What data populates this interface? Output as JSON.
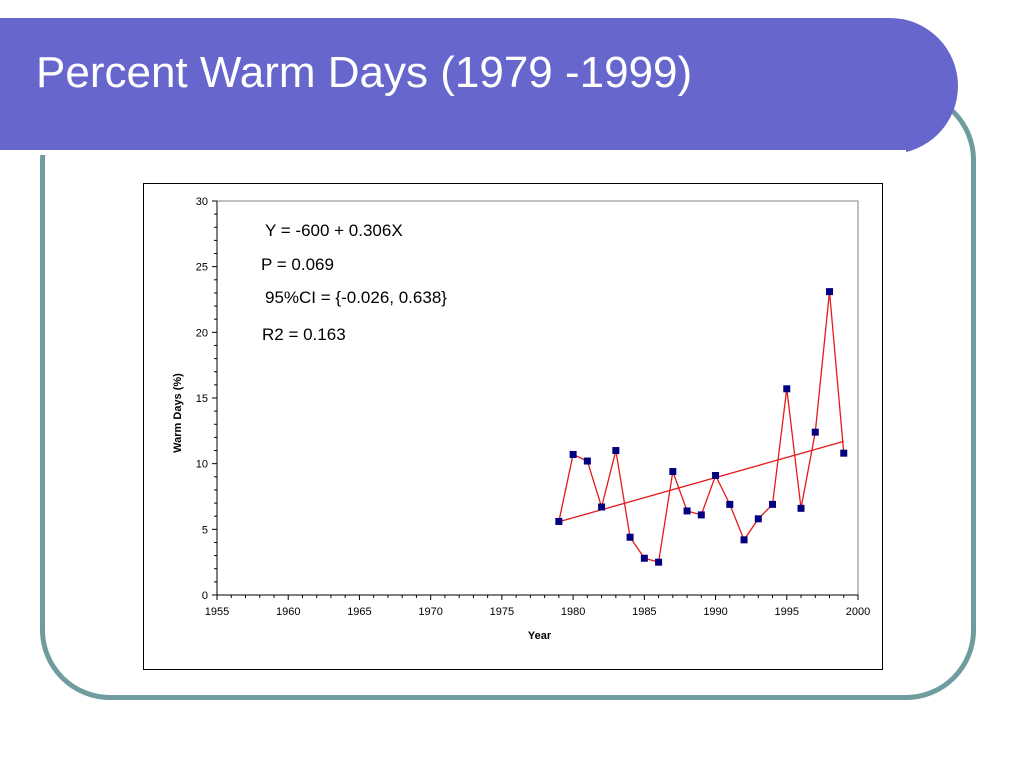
{
  "slide": {
    "title": "Percent Warm Days (1979 -1999)"
  },
  "colors": {
    "banner": "#6666cc",
    "frame": "#6f9c9e",
    "series": "#e31a1c",
    "marker": "#000080"
  },
  "chart_data": {
    "type": "scatter",
    "xlabel": "Year",
    "ylabel": "Warm Days (%)",
    "xlim": [
      1955,
      2000
    ],
    "ylim": [
      0,
      30
    ],
    "x_ticks": [
      1955,
      1960,
      1965,
      1970,
      1975,
      1980,
      1985,
      1990,
      1995,
      2000
    ],
    "y_ticks": [
      0,
      5,
      10,
      15,
      20,
      25,
      30
    ],
    "grid": false,
    "legend": "none",
    "series": [
      {
        "x": [
          1979,
          1980,
          1981,
          1982,
          1983,
          1984,
          1985,
          1986,
          1987,
          1988,
          1989,
          1990,
          1991,
          1992,
          1993,
          1994,
          1995,
          1996,
          1997,
          1998,
          1999
        ],
        "y": [
          5.6,
          10.7,
          10.2,
          6.7,
          11.0,
          4.4,
          2.8,
          2.5,
          9.4,
          6.4,
          6.1,
          9.1,
          6.9,
          4.2,
          5.8,
          6.9,
          15.7,
          6.6,
          12.4,
          23.1,
          10.8
        ]
      }
    ],
    "trendline": {
      "intercept": -600,
      "slope": 0.306,
      "x_range": [
        1979,
        1999
      ]
    },
    "annotations": [
      "Y = -600 + 0.306X",
      "P = 0.069",
      "95%CI = {-0.026, 0.638}",
      "R2 = 0.163"
    ]
  }
}
